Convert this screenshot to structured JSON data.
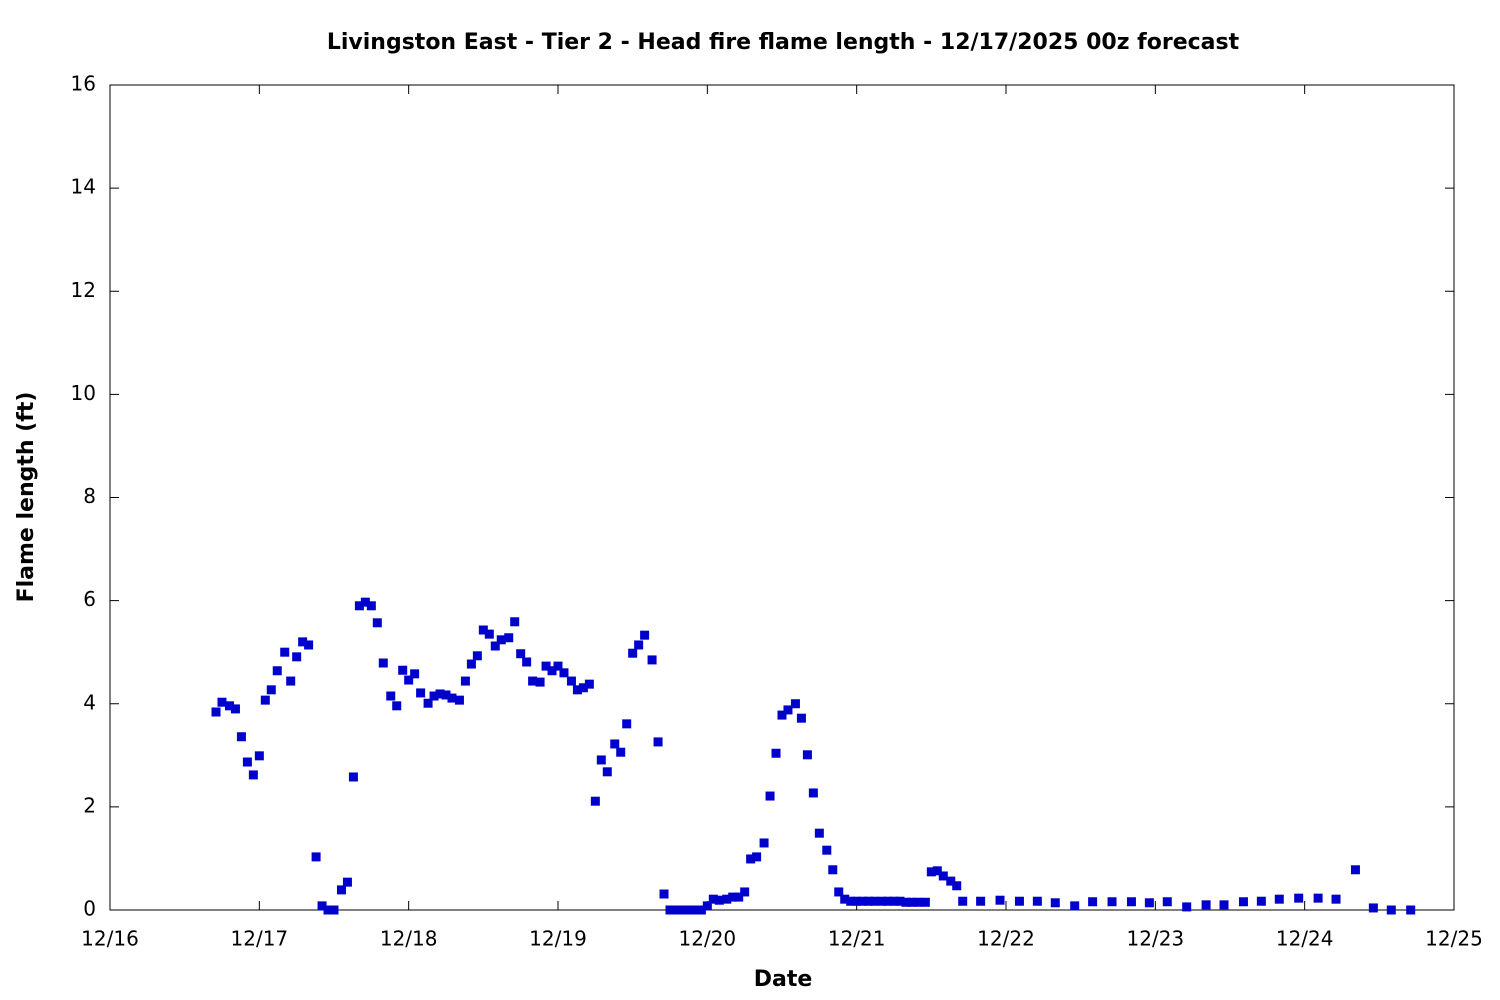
{
  "chart_data": {
    "type": "scatter",
    "title": "Livingston East - Tier 2 - Head fire flame length - 12/17/2025 00z forecast",
    "x_label": "Date",
    "y_label": "Flame length (ft)",
    "xlim": [
      16,
      25
    ],
    "xticks": [
      {
        "value": 16,
        "label": "12/16"
      },
      {
        "value": 17,
        "label": "12/17"
      },
      {
        "value": 18,
        "label": "12/18"
      },
      {
        "value": 19,
        "label": "12/19"
      },
      {
        "value": 20,
        "label": "12/20"
      },
      {
        "value": 21,
        "label": "12/21"
      },
      {
        "value": 22,
        "label": "12/22"
      },
      {
        "value": 23,
        "label": "12/23"
      },
      {
        "value": 24,
        "label": "12/24"
      },
      {
        "value": 25,
        "label": "12/25"
      }
    ],
    "ylim": [
      0,
      16
    ],
    "yticks": [
      0,
      2,
      4,
      6,
      8,
      10,
      12,
      14,
      16
    ],
    "grid": false,
    "color": "#0000cc",
    "x": [
      16.71,
      16.75,
      16.8,
      16.84,
      16.88,
      16.92,
      16.96,
      17.0,
      17.04,
      17.08,
      17.12,
      17.17,
      17.21,
      17.25,
      17.29,
      17.33,
      17.38,
      17.42,
      17.46,
      17.5,
      17.55,
      17.59,
      17.63,
      17.67,
      17.71,
      17.75,
      17.79,
      17.83,
      17.88,
      17.92,
      17.96,
      18.0,
      18.04,
      18.08,
      18.13,
      18.17,
      18.21,
      18.25,
      18.29,
      18.34,
      18.38,
      18.42,
      18.46,
      18.5,
      18.54,
      18.58,
      18.62,
      18.67,
      18.71,
      18.75,
      18.79,
      18.83,
      18.88,
      18.92,
      18.96,
      19.0,
      19.04,
      19.09,
      19.13,
      19.17,
      19.21,
      19.25,
      19.29,
      19.33,
      19.38,
      19.42,
      19.46,
      19.5,
      19.54,
      19.58,
      19.63,
      19.67,
      19.71,
      19.75,
      19.8,
      19.84,
      19.88,
      19.92,
      19.96,
      20.0,
      20.04,
      20.08,
      20.13,
      20.17,
      20.21,
      20.25,
      20.29,
      20.33,
      20.38,
      20.42,
      20.46,
      20.5,
      20.54,
      20.59,
      20.63,
      20.67,
      20.71,
      20.75,
      20.8,
      20.84,
      20.88,
      20.92,
      20.96,
      21.0,
      21.04,
      21.08,
      21.12,
      21.17,
      21.21,
      21.25,
      21.29,
      21.33,
      21.37,
      21.41,
      21.46,
      21.5,
      21.54,
      21.58,
      21.63,
      21.67,
      21.71,
      21.83,
      21.96,
      22.09,
      22.21,
      22.33,
      22.46,
      22.58,
      22.71,
      22.84,
      22.96,
      23.08,
      23.21,
      23.34,
      23.46,
      23.59,
      23.71,
      23.83,
      23.96,
      24.09,
      24.21,
      24.34,
      24.46,
      24.58,
      24.71
    ],
    "values": [
      3.84,
      4.03,
      3.96,
      3.9,
      3.36,
      2.87,
      2.62,
      2.99,
      4.07,
      4.27,
      4.64,
      5.0,
      4.44,
      4.91,
      5.2,
      5.14,
      1.03,
      0.08,
      0,
      0,
      0.39,
      0.54,
      2.58,
      5.9,
      5.97,
      5.9,
      5.57,
      4.79,
      4.15,
      3.96,
      4.65,
      4.46,
      4.58,
      4.21,
      4.01,
      4.15,
      4.19,
      4.17,
      4.11,
      4.07,
      4.44,
      4.77,
      4.93,
      5.43,
      5.35,
      5.12,
      5.24,
      5.28,
      5.59,
      4.97,
      4.81,
      4.44,
      4.42,
      4.73,
      4.64,
      4.73,
      4.6,
      4.44,
      4.27,
      4.31,
      4.38,
      2.11,
      2.91,
      2.68,
      3.22,
      3.06,
      3.61,
      4.98,
      5.14,
      5.33,
      4.85,
      3.26,
      0.31,
      0,
      0,
      0,
      0,
      0,
      0,
      0.08,
      0.21,
      0.19,
      0.21,
      0.25,
      0.25,
      0.35,
      0.99,
      1.03,
      1.3,
      2.21,
      3.04,
      3.78,
      3.88,
      4.0,
      3.72,
      3.01,
      2.27,
      1.49,
      1.16,
      0.78,
      0.35,
      0.21,
      0.17,
      0.17,
      0.17,
      0.17,
      0.17,
      0.17,
      0.17,
      0.17,
      0.17,
      0.15,
      0.15,
      0.15,
      0.15,
      0.74,
      0.76,
      0.66,
      0.56,
      0.47,
      0.17,
      0.17,
      0.19,
      0.17,
      0.17,
      0.14,
      0.08,
      0.16,
      0.16,
      0.16,
      0.14,
      0.16,
      0.06,
      0.1,
      0.1,
      0.16,
      0.17,
      0.21,
      0.23,
      0.23,
      0.21,
      0.78,
      0.04,
      0,
      0
    ]
  }
}
